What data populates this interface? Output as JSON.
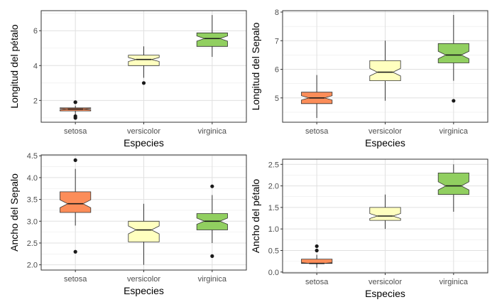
{
  "chart_data": [
    {
      "type": "boxplot",
      "xlabel": "Especies",
      "ylabel": "Longitud del pétalo",
      "categories": [
        "setosa",
        "versicolor",
        "virginica"
      ],
      "colors": [
        "#FC8D59",
        "#FFFFBF",
        "#91CF60"
      ],
      "ylim": [
        0.75,
        7.15
      ],
      "yticks": [
        2,
        4,
        6
      ],
      "grid": true,
      "notched": true,
      "boxes": [
        {
          "category": "setosa",
          "min": 1.2,
          "q1": 1.4,
          "median": 1.5,
          "q3": 1.575,
          "max": 1.7,
          "outliers": [
            1.9,
            1.9,
            1.0,
            1.1
          ]
        },
        {
          "category": "versicolor",
          "min": 3.3,
          "q1": 4.0,
          "median": 4.35,
          "q3": 4.6,
          "max": 5.1,
          "outliers": [
            3.0
          ]
        },
        {
          "category": "virginica",
          "min": 4.5,
          "q1": 5.1,
          "median": 5.55,
          "q3": 5.875,
          "max": 6.9,
          "outliers": []
        }
      ]
    },
    {
      "type": "boxplot",
      "xlabel": "Especies",
      "ylabel": "Longitud del Sepalo",
      "categories": [
        "setosa",
        "versicolor",
        "virginica"
      ],
      "colors": [
        "#FC8D59",
        "#FFFFBF",
        "#91CF60"
      ],
      "ylim": [
        4.15,
        8.05
      ],
      "yticks": [
        5,
        6,
        7,
        8
      ],
      "grid": true,
      "notched": true,
      "boxes": [
        {
          "category": "setosa",
          "min": 4.3,
          "q1": 4.8,
          "median": 5.0,
          "q3": 5.2,
          "max": 5.8,
          "outliers": []
        },
        {
          "category": "versicolor",
          "min": 4.9,
          "q1": 5.6,
          "median": 5.9,
          "q3": 6.3,
          "max": 7.0,
          "outliers": []
        },
        {
          "category": "virginica",
          "min": 5.6,
          "q1": 6.225,
          "median": 6.5,
          "q3": 6.9,
          "max": 7.9,
          "outliers": [
            4.9
          ]
        }
      ]
    },
    {
      "type": "boxplot",
      "xlabel": "Especies",
      "ylabel": "Ancho del Sepalo",
      "categories": [
        "setosa",
        "versicolor",
        "virginica"
      ],
      "colors": [
        "#FC8D59",
        "#FFFFBF",
        "#91CF60"
      ],
      "ylim": [
        1.88,
        4.52
      ],
      "yticks": [
        2.0,
        2.5,
        3.0,
        3.5,
        4.0,
        4.5
      ],
      "grid": true,
      "notched": true,
      "boxes": [
        {
          "category": "setosa",
          "min": 2.9,
          "q1": 3.2,
          "median": 3.4,
          "q3": 3.675,
          "max": 4.2,
          "outliers": [
            4.4,
            2.3
          ]
        },
        {
          "category": "versicolor",
          "min": 2.0,
          "q1": 2.525,
          "median": 2.8,
          "q3": 3.0,
          "max": 3.4,
          "outliers": []
        },
        {
          "category": "virginica",
          "min": 2.5,
          "q1": 2.8,
          "median": 3.0,
          "q3": 3.175,
          "max": 3.6,
          "outliers": [
            3.8,
            2.2
          ]
        }
      ]
    },
    {
      "type": "boxplot",
      "xlabel": "Especies",
      "ylabel": "Ancho del pétalo",
      "categories": [
        "setosa",
        "versicolor",
        "virginica"
      ],
      "colors": [
        "#FC8D59",
        "#FFFFBF",
        "#91CF60"
      ],
      "ylim": [
        -0.02,
        2.62
      ],
      "yticks": [
        0.0,
        0.5,
        1.0,
        1.5,
        2.0,
        2.5
      ],
      "grid": true,
      "notched": true,
      "boxes": [
        {
          "category": "setosa",
          "min": 0.1,
          "q1": 0.2,
          "median": 0.2,
          "q3": 0.3,
          "max": 0.4,
          "outliers": [
            0.6,
            0.5
          ]
        },
        {
          "category": "versicolor",
          "min": 1.0,
          "q1": 1.2,
          "median": 1.3,
          "q3": 1.5,
          "max": 1.8,
          "outliers": []
        },
        {
          "category": "virginica",
          "min": 1.4,
          "q1": 1.8,
          "median": 2.0,
          "q3": 2.3,
          "max": 2.5,
          "outliers": []
        }
      ]
    }
  ]
}
